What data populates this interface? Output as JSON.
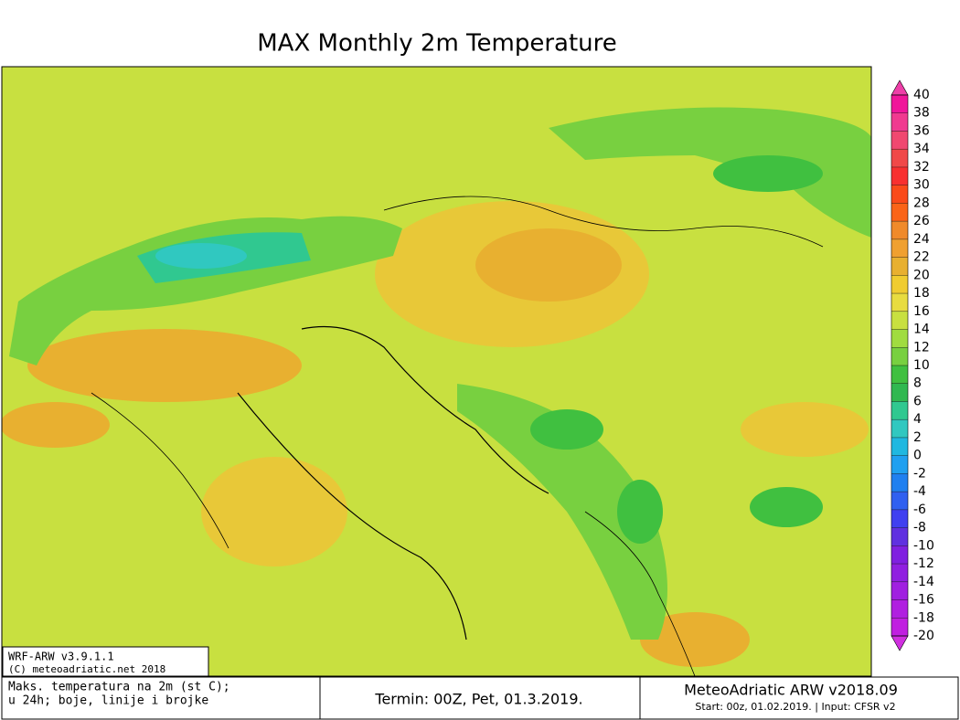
{
  "title": "MAX Monthly 2m Temperature",
  "colorbar": {
    "levels": [
      40,
      38,
      36,
      34,
      32,
      30,
      28,
      26,
      24,
      22,
      20,
      18,
      16,
      14,
      12,
      10,
      8,
      6,
      4,
      2,
      0,
      -2,
      -4,
      -6,
      -8,
      -10,
      -12,
      -14,
      -16,
      -18,
      -20
    ],
    "colors": [
      "#ee3fa8",
      "#f0169a",
      "#f03a90",
      "#f04870",
      "#f04848",
      "#f83030",
      "#fa4a1a",
      "#fa6418",
      "#f08a2a",
      "#f0a030",
      "#e8b030",
      "#f0cc30",
      "#e8dc40",
      "#c8e040",
      "#a0dc40",
      "#78d040",
      "#40c040",
      "#30b850",
      "#30c890",
      "#30c8c0",
      "#20b8e0",
      "#20a0f0",
      "#2080f0",
      "#3060f0",
      "#4040f0",
      "#6030e0",
      "#8020e0",
      "#9020e0",
      "#a020e0",
      "#b020e0",
      "#c020e0",
      "#d030e0"
    ]
  },
  "model_box": [
    "WRF-ARW v3.9.1.1",
    "(C) meteoadriatic.net 2018"
  ],
  "footer": {
    "description": [
      "Maks. temperatura na 2m (st C);",
      "u 24h; boje, linije i brojke"
    ],
    "termin": "Termin: 00Z, Pet, 01.3.2019.",
    "brand": "MeteoAdriatic ARW v2018.09",
    "start": "Start: 00z, 01.02.2019. | Input: CFSR v2"
  }
}
